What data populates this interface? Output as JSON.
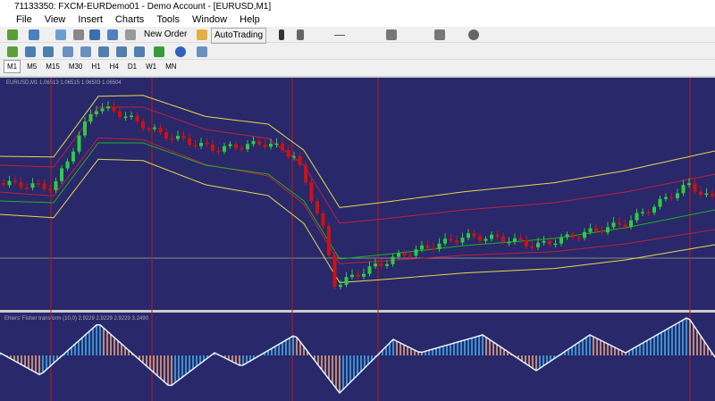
{
  "window": {
    "title": "71133350: FXCM-EURDemo01 - Demo Account - [EURUSD,M1]"
  },
  "menu": [
    "File",
    "View",
    "Insert",
    "Charts",
    "Tools",
    "Window",
    "Help"
  ],
  "toolbar": {
    "new_order": "New Order",
    "auto_trading": "AutoTrading"
  },
  "timeframes": [
    "M1",
    "M5",
    "M15",
    "M30",
    "H1",
    "H4",
    "D1",
    "W1",
    "MN"
  ],
  "chart": {
    "header": "EURUSD,M1  1.06513 1.06515 1.06503 1.06504"
  },
  "indicator": {
    "header": "Ehlers' Fisher transform (10,0) 2.9229 2.9229 2.9229 3.2490"
  }
}
